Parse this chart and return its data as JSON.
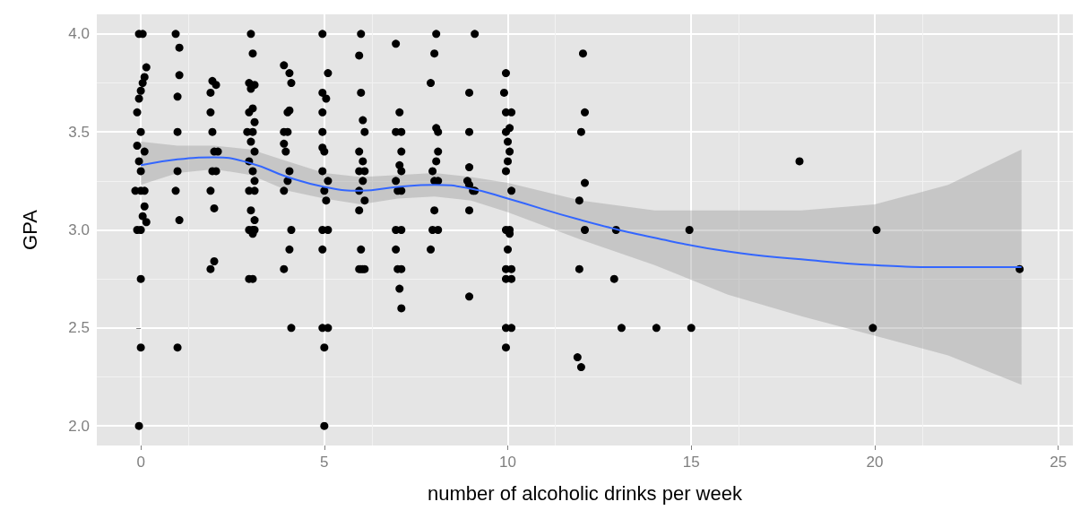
{
  "chart_data": {
    "type": "scatter",
    "xlabel": "number of alcoholic drinks per week",
    "ylabel": "GPA",
    "xlim": [
      -1.2,
      25.4
    ],
    "ylim": [
      1.9,
      4.1
    ],
    "xticks": [
      0,
      5,
      10,
      15,
      20,
      25
    ],
    "yticks": [
      {
        "value": 2,
        "label": "2.0"
      },
      {
        "value": 2.5,
        "label": "2.5"
      },
      {
        "value": 3,
        "label": "3.0"
      },
      {
        "value": 3.5,
        "label": "3.5"
      },
      {
        "value": 4,
        "label": "4.0"
      }
    ],
    "grid": true,
    "series": [
      {
        "color": "#000000",
        "marker": "circle",
        "x": [
          -0.05,
          0.05,
          0.15,
          0.1,
          0.05,
          0.0,
          -0.05,
          -0.1,
          0.0,
          -0.1,
          0.1,
          -0.05,
          0.0,
          0.0,
          -0.15,
          0.1,
          0.1,
          0.05,
          0.15,
          -0.1,
          0.0,
          0.0,
          0.0,
          -0.05,
          0.95,
          1.05,
          1.05,
          1.0,
          1.0,
          1.0,
          0.95,
          1.05,
          1.0,
          1.95,
          2.05,
          1.9,
          1.9,
          1.95,
          2.0,
          2.1,
          1.95,
          2.05,
          1.9,
          2.0,
          2.0,
          1.9,
          3.0,
          3.05,
          2.95,
          3.1,
          3.0,
          3.05,
          2.95,
          3.1,
          2.9,
          3.05,
          3.0,
          3.1,
          2.95,
          3.05,
          3.1,
          2.95,
          3.1,
          3.0,
          3.1,
          2.95,
          3.05,
          3.1,
          3.05,
          2.95,
          3.05,
          3.9,
          4.05,
          4.1,
          4.05,
          4.0,
          3.9,
          4.0,
          3.9,
          3.95,
          4.05,
          4.0,
          3.9,
          4.1,
          4.05,
          3.9,
          4.1,
          4.95,
          5.1,
          4.95,
          5.05,
          4.95,
          4.95,
          4.95,
          5.0,
          4.95,
          5.1,
          5.0,
          5.05,
          4.95,
          5.1,
          4.95,
          4.95,
          5.1,
          5.0,
          5.0,
          6.0,
          5.95,
          6.0,
          6.05,
          6.1,
          5.95,
          6.05,
          5.95,
          6.1,
          6.05,
          5.95,
          6.1,
          5.95,
          6.0,
          6.05,
          5.95,
          6.1,
          6.0,
          6.95,
          7.05,
          6.95,
          7.1,
          7.1,
          7.05,
          7.1,
          6.95,
          7.0,
          7.1,
          6.95,
          7.1,
          6.95,
          7.0,
          7.1,
          7.05,
          7.1,
          8.05,
          8.0,
          7.9,
          8.05,
          8.1,
          8.1,
          8.05,
          7.95,
          8.1,
          8.0,
          8.0,
          7.95,
          8.1,
          7.9,
          9.1,
          8.95,
          8.95,
          8.95,
          8.9,
          8.95,
          9.1,
          9.05,
          8.95,
          8.95,
          9.95,
          9.9,
          9.95,
          10.1,
          10.05,
          9.95,
          10.0,
          10.05,
          10.0,
          9.95,
          10.1,
          9.95,
          10.05,
          10.05,
          10.0,
          9.95,
          10.1,
          9.95,
          10.1,
          9.95,
          10.1,
          9.95,
          12.05,
          12.1,
          12.0,
          12.1,
          11.95,
          12.1,
          11.95,
          11.9,
          12.0,
          12.95,
          12.9,
          13.1,
          14.05,
          14.95,
          15.0,
          17.95,
          20.05,
          19.95,
          23.95
        ],
        "values": [
          4.0,
          4.0,
          3.83,
          3.78,
          3.75,
          3.71,
          3.67,
          3.6,
          3.5,
          3.43,
          3.4,
          3.35,
          3.3,
          3.2,
          3.2,
          3.2,
          3.12,
          3.07,
          3.04,
          3.0,
          3.0,
          2.75,
          2.4,
          2.0,
          4.0,
          3.93,
          3.79,
          3.68,
          3.5,
          3.3,
          3.2,
          3.05,
          2.4,
          3.76,
          3.74,
          3.7,
          3.6,
          3.5,
          3.4,
          3.4,
          3.3,
          3.3,
          3.2,
          3.11,
          2.84,
          2.8,
          4.0,
          3.9,
          3.75,
          3.74,
          3.72,
          3.62,
          3.6,
          3.55,
          3.5,
          3.5,
          3.45,
          3.4,
          3.35,
          3.3,
          3.25,
          3.2,
          3.2,
          3.1,
          3.05,
          3.0,
          3.0,
          3.0,
          2.98,
          2.75,
          2.75,
          3.84,
          3.8,
          3.75,
          3.61,
          3.6,
          3.5,
          3.5,
          3.44,
          3.4,
          3.3,
          3.25,
          3.2,
          3.0,
          2.9,
          2.8,
          2.5,
          4.0,
          3.8,
          3.7,
          3.67,
          3.6,
          3.5,
          3.42,
          3.4,
          3.3,
          3.25,
          3.2,
          3.15,
          3.0,
          3.0,
          2.9,
          2.5,
          2.5,
          2.4,
          2.0,
          4.0,
          3.89,
          3.7,
          3.56,
          3.5,
          3.4,
          3.35,
          3.3,
          3.3,
          3.25,
          3.2,
          3.15,
          3.1,
          2.9,
          2.8,
          2.8,
          2.8,
          2.8,
          3.95,
          3.6,
          3.5,
          3.5,
          3.4,
          3.33,
          3.3,
          3.25,
          3.2,
          3.2,
          3.0,
          3.0,
          2.9,
          2.8,
          2.8,
          2.7,
          2.6,
          4.0,
          3.9,
          3.75,
          3.52,
          3.5,
          3.4,
          3.35,
          3.3,
          3.25,
          3.25,
          3.1,
          3.0,
          3.0,
          2.9,
          4.0,
          3.7,
          3.5,
          3.32,
          3.25,
          3.23,
          3.2,
          3.2,
          3.1,
          2.66,
          3.8,
          3.7,
          3.6,
          3.6,
          3.52,
          3.5,
          3.45,
          3.4,
          3.35,
          3.3,
          3.2,
          3.0,
          3.0,
          2.98,
          2.9,
          2.8,
          2.8,
          2.75,
          2.75,
          2.5,
          2.5,
          2.4,
          3.9,
          3.6,
          3.5,
          3.24,
          3.15,
          3.0,
          2.8,
          2.35,
          2.3,
          3.0,
          2.75,
          2.5,
          2.5,
          3.0,
          2.5,
          3.35,
          3.0,
          2.5,
          2.8
        ]
      },
      {
        "type": "line",
        "color": "#3366ff",
        "marker": "none",
        "x": [
          0,
          1,
          2,
          3,
          4,
          5,
          6,
          7,
          8,
          9,
          10,
          12,
          14,
          16,
          18,
          20,
          22,
          24
        ],
        "values": [
          3.33,
          3.36,
          3.37,
          3.34,
          3.27,
          3.22,
          3.2,
          3.22,
          3.23,
          3.21,
          3.16,
          3.05,
          2.96,
          2.89,
          2.85,
          2.82,
          2.81,
          2.81
        ],
        "lower": [
          3.23,
          3.29,
          3.31,
          3.28,
          3.2,
          3.16,
          3.13,
          3.16,
          3.17,
          3.15,
          3.09,
          2.95,
          2.82,
          2.67,
          2.56,
          2.46,
          2.36,
          2.21
        ],
        "upper": [
          3.45,
          3.43,
          3.43,
          3.41,
          3.35,
          3.29,
          3.27,
          3.28,
          3.29,
          3.27,
          3.24,
          3.15,
          3.1,
          3.1,
          3.1,
          3.13,
          3.23,
          3.41
        ]
      }
    ]
  }
}
